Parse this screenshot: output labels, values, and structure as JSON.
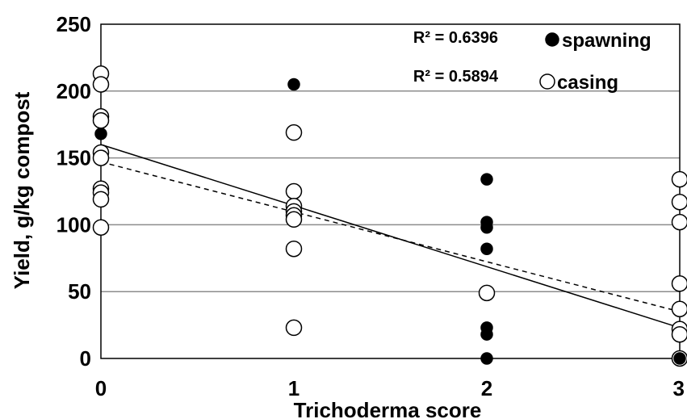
{
  "chart_data": {
    "type": "scatter",
    "xlabel": "Trichoderma score",
    "ylabel": "Yield, g/kg compost",
    "xlim": [
      0,
      3
    ],
    "ylim": [
      0,
      250
    ],
    "x_ticks": [
      "0",
      "1",
      "2",
      "3"
    ],
    "y_ticks": [
      "0",
      "50",
      "100",
      "150",
      "200",
      "250"
    ],
    "grid": "horizontal",
    "legend_position": "top-right",
    "series": [
      {
        "name": "spawning",
        "marker": "filled-circle",
        "color": "#000000",
        "points": [
          {
            "x": 0,
            "y": 168
          },
          {
            "x": 1,
            "y": 205
          },
          {
            "x": 2,
            "y": 134
          },
          {
            "x": 2,
            "y": 102
          },
          {
            "x": 2,
            "y": 98
          },
          {
            "x": 2,
            "y": 82
          },
          {
            "x": 2,
            "y": 23
          },
          {
            "x": 2,
            "y": 18
          },
          {
            "x": 2,
            "y": 0
          },
          {
            "x": 3,
            "y": 0
          }
        ],
        "trendline": {
          "style": "solid",
          "x": [
            0,
            3
          ],
          "y": [
            160,
            23
          ]
        },
        "r2_label": "R² = 0.6396"
      },
      {
        "name": "casing",
        "marker": "open-circle",
        "color": "#000000",
        "points": [
          {
            "x": 0,
            "y": 213
          },
          {
            "x": 0,
            "y": 205
          },
          {
            "x": 0,
            "y": 181
          },
          {
            "x": 0,
            "y": 178
          },
          {
            "x": 0,
            "y": 154
          },
          {
            "x": 0,
            "y": 150
          },
          {
            "x": 0,
            "y": 127
          },
          {
            "x": 0,
            "y": 124
          },
          {
            "x": 0,
            "y": 119
          },
          {
            "x": 0,
            "y": 98
          },
          {
            "x": 1,
            "y": 169
          },
          {
            "x": 1,
            "y": 125
          },
          {
            "x": 1,
            "y": 114
          },
          {
            "x": 1,
            "y": 110
          },
          {
            "x": 1,
            "y": 107
          },
          {
            "x": 1,
            "y": 104
          },
          {
            "x": 1,
            "y": 82
          },
          {
            "x": 1,
            "y": 23
          },
          {
            "x": 2,
            "y": 49
          },
          {
            "x": 3,
            "y": 134
          },
          {
            "x": 3,
            "y": 117
          },
          {
            "x": 3,
            "y": 102
          },
          {
            "x": 3,
            "y": 56
          },
          {
            "x": 3,
            "y": 37
          },
          {
            "x": 3,
            "y": 22
          },
          {
            "x": 3,
            "y": 18
          },
          {
            "x": 3,
            "y": 0
          }
        ],
        "trendline": {
          "style": "dashed",
          "x": [
            0,
            3
          ],
          "y": [
            147,
            35
          ]
        },
        "r2_label": "R² = 0.5894"
      }
    ]
  }
}
